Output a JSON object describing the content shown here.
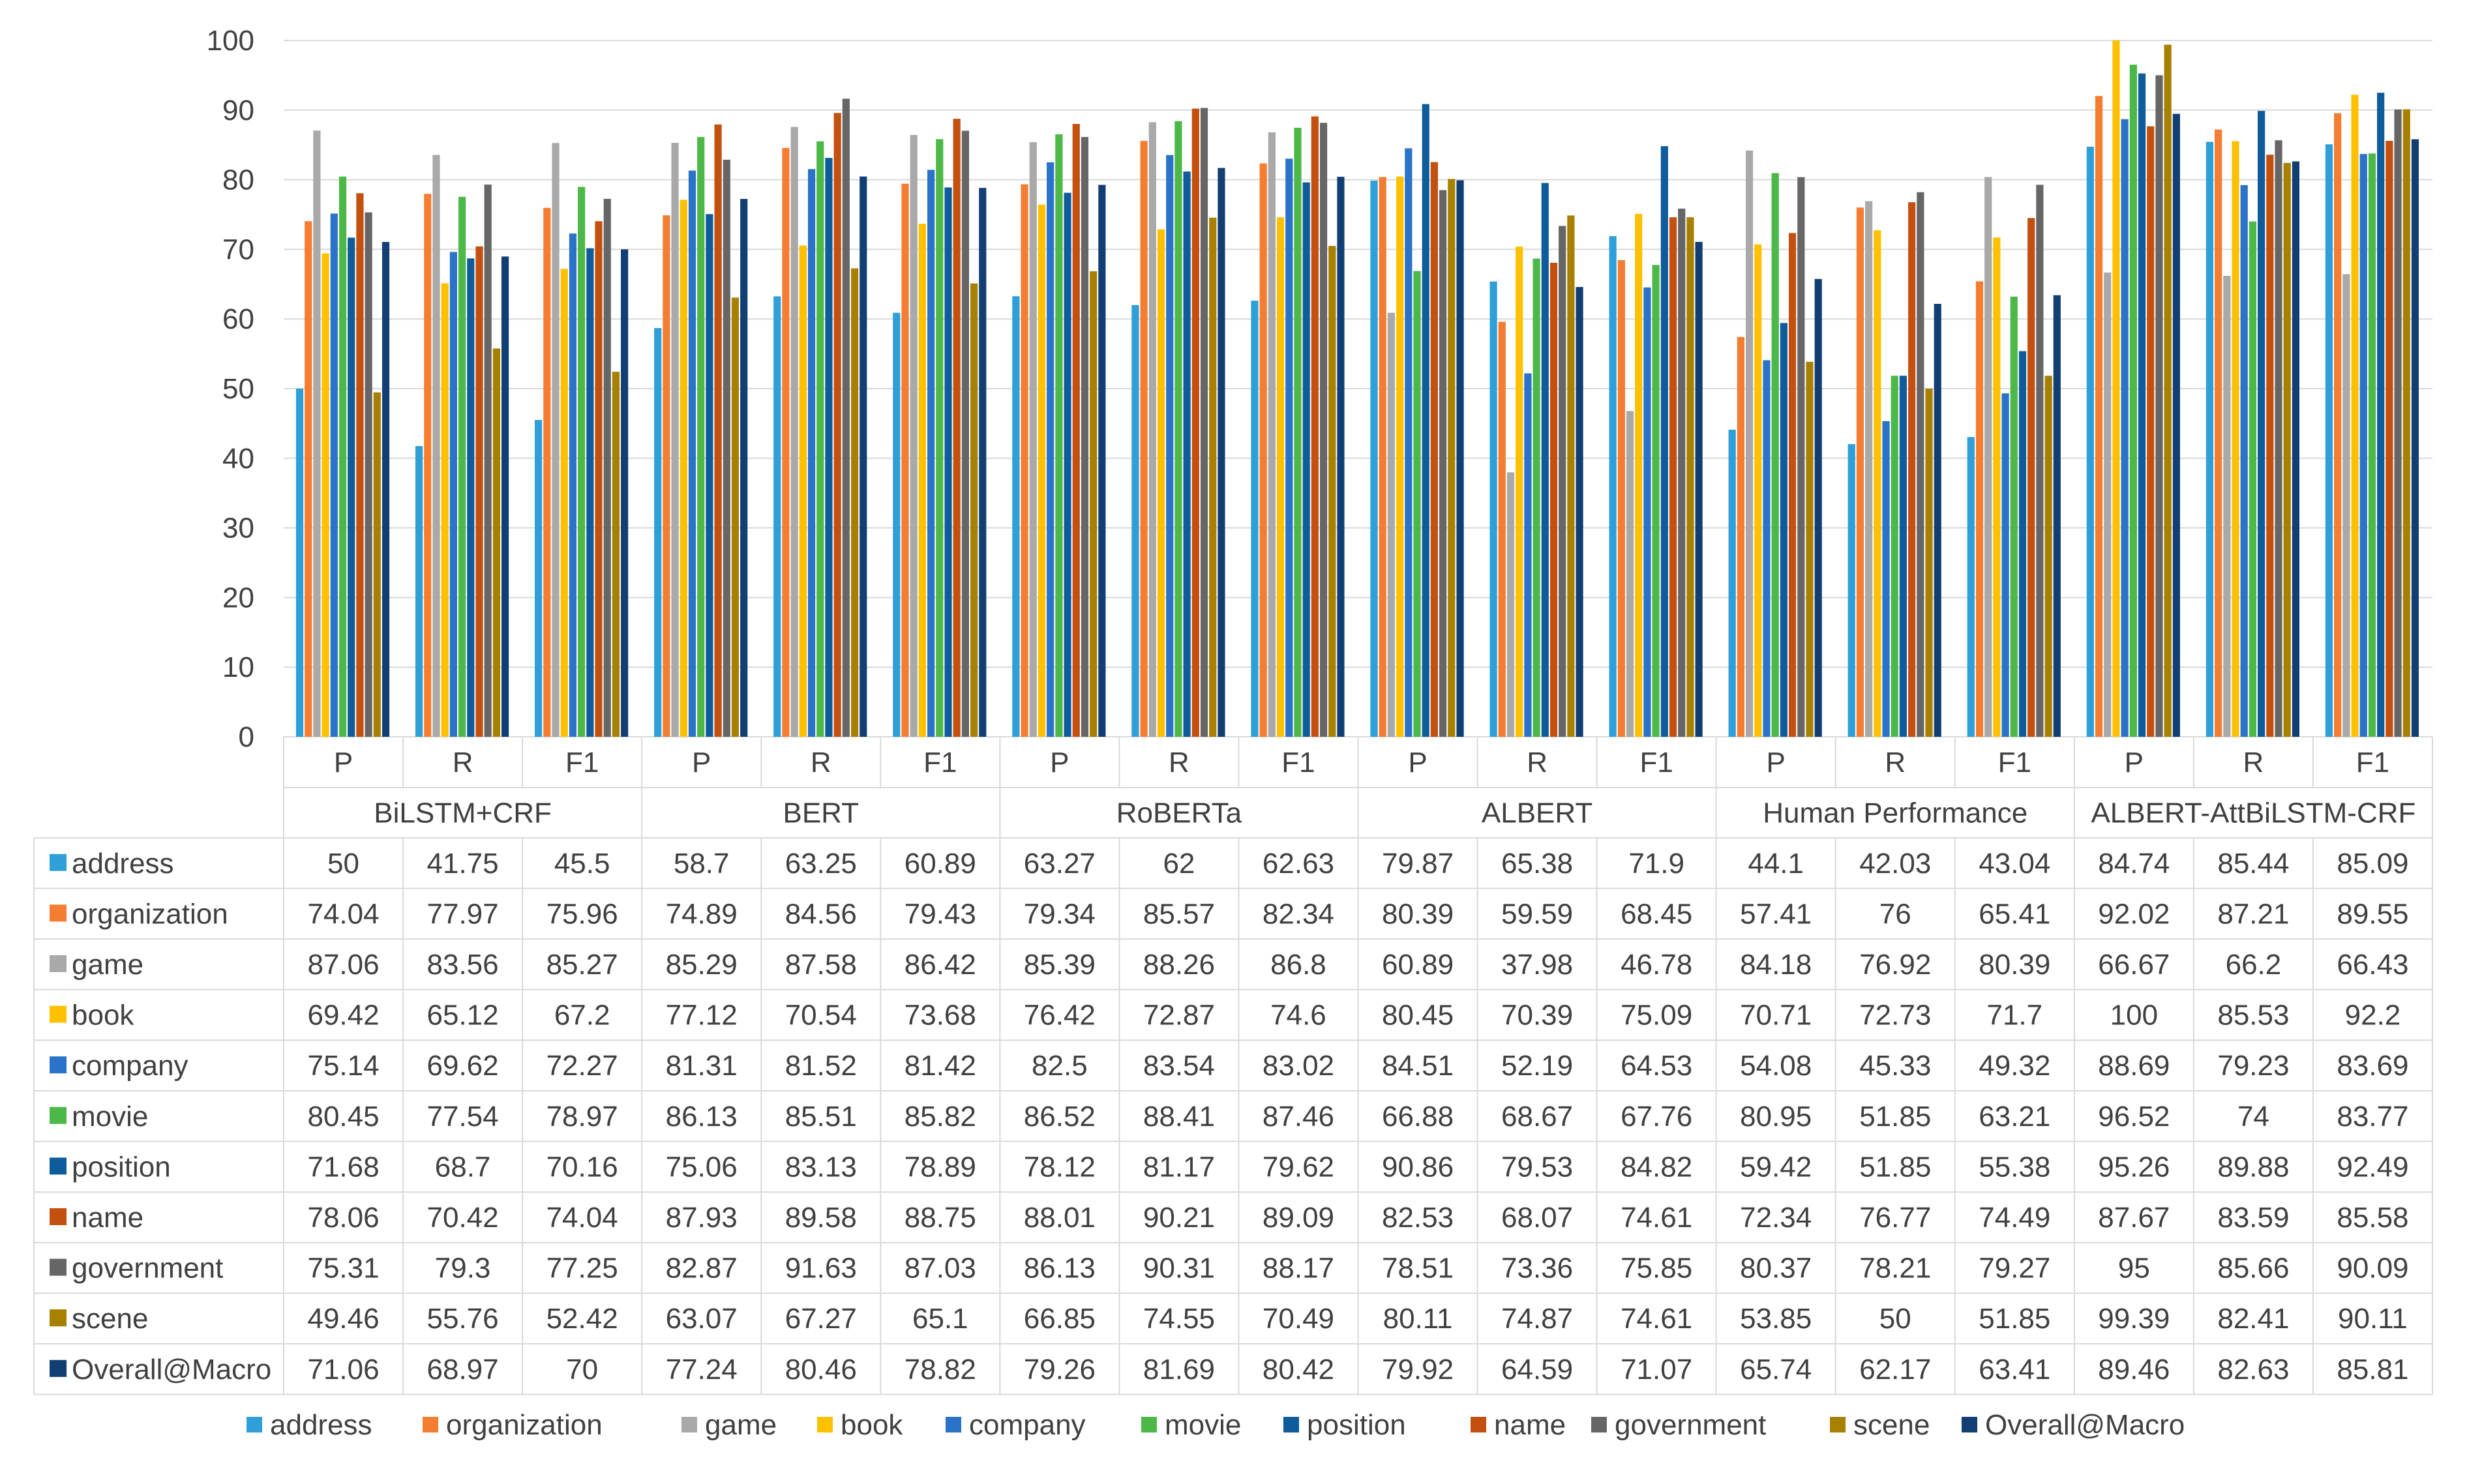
{
  "chart_data": {
    "type": "bar",
    "title": "",
    "xlabel": "",
    "ylabel": "",
    "ylim": [
      0,
      100
    ],
    "yticks": [
      "0",
      "10",
      "20",
      "30",
      "40",
      "50",
      "60",
      "70",
      "80",
      "90",
      "100"
    ],
    "legend_position": "bottom",
    "groups": [
      "BiLSTM+CRF",
      "BERT",
      "RoBERTa",
      "ALBERT",
      "Human Performance",
      "ALBERT-AttBiLSTM-CRF"
    ],
    "metrics": [
      "P",
      "R",
      "F1"
    ],
    "categories": [
      "P",
      "R",
      "F1",
      "P",
      "R",
      "F1",
      "P",
      "R",
      "F1",
      "P",
      "R",
      "F1",
      "P",
      "R",
      "F1",
      "P",
      "R",
      "F1"
    ],
    "series": [
      {
        "name": "address",
        "color": "#2e9fd9",
        "values": [
          50,
          41.75,
          45.5,
          58.7,
          63.25,
          60.89,
          63.27,
          62,
          62.63,
          79.87,
          65.38,
          71.9,
          44.1,
          42.03,
          43.04,
          84.74,
          85.44,
          85.09
        ]
      },
      {
        "name": "organization",
        "color": "#f47d31",
        "values": [
          74.04,
          77.97,
          75.96,
          74.89,
          84.56,
          79.43,
          79.34,
          85.57,
          82.34,
          80.39,
          59.59,
          68.45,
          57.41,
          76,
          65.41,
          92.02,
          87.21,
          89.55
        ]
      },
      {
        "name": "game",
        "color": "#a9a9a9",
        "values": [
          87.06,
          83.56,
          85.27,
          85.29,
          87.58,
          86.42,
          85.39,
          88.26,
          86.8,
          60.89,
          37.98,
          46.78,
          84.18,
          76.92,
          80.39,
          66.67,
          66.2,
          66.43
        ]
      },
      {
        "name": "book",
        "color": "#ffc000",
        "values": [
          69.42,
          65.12,
          67.2,
          77.12,
          70.54,
          73.68,
          76.42,
          72.87,
          74.6,
          80.45,
          70.39,
          75.09,
          70.71,
          72.73,
          71.7,
          100,
          85.53,
          92.2
        ]
      },
      {
        "name": "company",
        "color": "#2a73c8",
        "values": [
          75.14,
          69.62,
          72.27,
          81.31,
          81.52,
          81.42,
          82.5,
          83.54,
          83.02,
          84.51,
          52.19,
          64.53,
          54.08,
          45.33,
          49.32,
          88.69,
          79.23,
          83.69
        ]
      },
      {
        "name": "movie",
        "color": "#4cb848",
        "values": [
          80.45,
          77.54,
          78.97,
          86.13,
          85.51,
          85.82,
          86.52,
          88.41,
          87.46,
          66.88,
          68.67,
          67.76,
          80.95,
          51.85,
          63.21,
          96.52,
          74,
          83.77
        ]
      },
      {
        "name": "position",
        "color": "#0f5c9c",
        "values": [
          71.68,
          68.7,
          70.16,
          75.06,
          83.13,
          78.89,
          78.12,
          81.17,
          79.62,
          90.86,
          79.53,
          84.82,
          59.42,
          51.85,
          55.38,
          95.26,
          89.88,
          92.49
        ]
      },
      {
        "name": "name",
        "color": "#c4500f",
        "values": [
          78.06,
          70.42,
          74.04,
          87.93,
          89.58,
          88.75,
          88.01,
          90.21,
          89.09,
          82.53,
          68.07,
          74.61,
          72.34,
          76.77,
          74.49,
          87.67,
          83.59,
          85.58
        ]
      },
      {
        "name": "government",
        "color": "#666666",
        "values": [
          75.31,
          79.3,
          77.25,
          82.87,
          91.63,
          87.03,
          86.13,
          90.31,
          88.17,
          78.51,
          73.36,
          75.85,
          80.37,
          78.21,
          79.27,
          95,
          85.66,
          90.09
        ]
      },
      {
        "name": "scene",
        "color": "#a88000",
        "values": [
          49.46,
          55.76,
          52.42,
          63.07,
          67.27,
          65.1,
          66.85,
          74.55,
          70.49,
          80.11,
          74.87,
          74.61,
          53.85,
          50,
          51.85,
          99.39,
          82.41,
          90.11
        ]
      },
      {
        "name": "Overall@Macro",
        "color": "#123f73",
        "values": [
          71.06,
          68.97,
          70,
          77.24,
          80.46,
          78.82,
          79.26,
          81.69,
          80.42,
          79.92,
          64.59,
          71.07,
          65.74,
          62.17,
          63.41,
          89.46,
          82.63,
          85.81
        ]
      }
    ]
  },
  "colors": {
    "gridline": "#d9d9d9",
    "border": "#d9d9d9",
    "text": "#404040"
  }
}
